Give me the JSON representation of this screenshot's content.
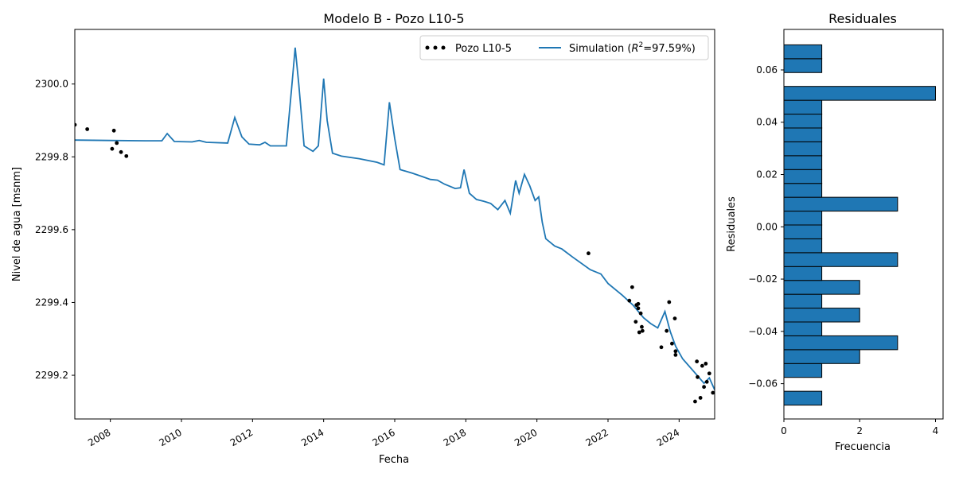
{
  "chart_data": [
    {
      "type": "line",
      "title": "Modelo B - Pozo L10-5",
      "xlabel": "Fecha",
      "ylabel": "Nivel de agua [msnm]",
      "xlim": [
        2007.0,
        2025.0
      ],
      "ylim": [
        2299.08,
        2300.15
      ],
      "x_ticks": [
        2008,
        2010,
        2012,
        2014,
        2016,
        2018,
        2020,
        2022,
        2024
      ],
      "y_ticks": [
        2299.2,
        2299.4,
        2299.6,
        2299.8,
        2300.0
      ],
      "y_tick_labels": [
        "2299.2",
        "2299.4",
        "2299.6",
        "2299.8",
        "2300.0"
      ],
      "grid": false,
      "legend_position": "top-right",
      "legend": {
        "observed": "Pozo L10-5",
        "simulated_prefix": "Simulation (",
        "simulated_r2": "R",
        "simulated_sup": "2",
        "simulated_suffix": "=97.59%)"
      },
      "colors": {
        "simulation": "#1f77b4",
        "observed": "#000000"
      },
      "series": [
        {
          "name": "Pozo L10-5",
          "kind": "scatter",
          "points": [
            [
              2007.0,
              2299.888
            ],
            [
              2007.35,
              2299.876
            ],
            [
              2008.05,
              2299.822
            ],
            [
              2008.1,
              2299.872
            ],
            [
              2008.18,
              2299.838
            ],
            [
              2008.3,
              2299.813
            ],
            [
              2008.45,
              2299.802
            ],
            [
              2021.45,
              2299.535
            ],
            [
              2022.6,
              2299.405
            ],
            [
              2022.68,
              2299.442
            ],
            [
              2022.78,
              2299.347
            ],
            [
              2022.8,
              2299.393
            ],
            [
              2022.85,
              2299.396
            ],
            [
              2022.85,
              2299.384
            ],
            [
              2022.88,
              2299.318
            ],
            [
              2022.92,
              2299.37
            ],
            [
              2022.95,
              2299.333
            ],
            [
              2022.97,
              2299.322
            ],
            [
              2023.5,
              2299.277
            ],
            [
              2023.65,
              2299.322
            ],
            [
              2023.72,
              2299.401
            ],
            [
              2023.8,
              2299.287
            ],
            [
              2023.88,
              2299.356
            ],
            [
              2023.9,
              2299.266
            ],
            [
              2023.9,
              2299.256
            ],
            [
              2024.45,
              2299.128
            ],
            [
              2024.5,
              2299.238
            ],
            [
              2024.52,
              2299.195
            ],
            [
              2024.6,
              2299.138
            ],
            [
              2024.65,
              2299.226
            ],
            [
              2024.7,
              2299.168
            ],
            [
              2024.75,
              2299.232
            ],
            [
              2024.78,
              2299.182
            ],
            [
              2024.85,
              2299.205
            ],
            [
              2024.95,
              2299.152
            ]
          ]
        },
        {
          "name": "Simulation (R2=97.59%)",
          "kind": "line",
          "points": [
            [
              2007.0,
              2299.846
            ],
            [
              2008.0,
              2299.845
            ],
            [
              2009.0,
              2299.844
            ],
            [
              2009.45,
              2299.844
            ],
            [
              2009.6,
              2299.864
            ],
            [
              2009.8,
              2299.842
            ],
            [
              2010.3,
              2299.841
            ],
            [
              2010.5,
              2299.845
            ],
            [
              2010.7,
              2299.84
            ],
            [
              2011.3,
              2299.838
            ],
            [
              2011.5,
              2299.908
            ],
            [
              2011.7,
              2299.855
            ],
            [
              2011.9,
              2299.835
            ],
            [
              2012.2,
              2299.833
            ],
            [
              2012.35,
              2299.84
            ],
            [
              2012.5,
              2299.83
            ],
            [
              2012.7,
              2299.83
            ],
            [
              2012.95,
              2299.83
            ],
            [
              2013.1,
              2299.99
            ],
            [
              2013.2,
              2300.1
            ],
            [
              2013.3,
              2300.0
            ],
            [
              2013.45,
              2299.83
            ],
            [
              2013.7,
              2299.815
            ],
            [
              2013.85,
              2299.83
            ],
            [
              2014.0,
              2300.015
            ],
            [
              2014.1,
              2299.9
            ],
            [
              2014.25,
              2299.81
            ],
            [
              2014.5,
              2299.802
            ],
            [
              2015.0,
              2299.795
            ],
            [
              2015.5,
              2299.785
            ],
            [
              2015.7,
              2299.778
            ],
            [
              2015.85,
              2299.95
            ],
            [
              2016.0,
              2299.85
            ],
            [
              2016.15,
              2299.765
            ],
            [
              2016.5,
              2299.755
            ],
            [
              2016.8,
              2299.745
            ],
            [
              2017.0,
              2299.738
            ],
            [
              2017.2,
              2299.736
            ],
            [
              2017.4,
              2299.725
            ],
            [
              2017.7,
              2299.713
            ],
            [
              2017.85,
              2299.715
            ],
            [
              2017.95,
              2299.765
            ],
            [
              2018.1,
              2299.7
            ],
            [
              2018.3,
              2299.683
            ],
            [
              2018.5,
              2299.678
            ],
            [
              2018.7,
              2299.672
            ],
            [
              2018.9,
              2299.655
            ],
            [
              2019.1,
              2299.68
            ],
            [
              2019.25,
              2299.645
            ],
            [
              2019.4,
              2299.735
            ],
            [
              2019.5,
              2299.7
            ],
            [
              2019.65,
              2299.752
            ],
            [
              2019.8,
              2299.72
            ],
            [
              2019.95,
              2299.68
            ],
            [
              2020.05,
              2299.69
            ],
            [
              2020.15,
              2299.62
            ],
            [
              2020.25,
              2299.575
            ],
            [
              2020.5,
              2299.555
            ],
            [
              2020.7,
              2299.547
            ],
            [
              2021.0,
              2299.525
            ],
            [
              2021.5,
              2299.49
            ],
            [
              2021.8,
              2299.478
            ],
            [
              2022.0,
              2299.452
            ],
            [
              2022.4,
              2299.42
            ],
            [
              2022.7,
              2299.393
            ],
            [
              2023.0,
              2299.358
            ],
            [
              2023.2,
              2299.342
            ],
            [
              2023.4,
              2299.33
            ],
            [
              2023.6,
              2299.375
            ],
            [
              2023.75,
              2299.32
            ],
            [
              2023.9,
              2299.28
            ],
            [
              2024.1,
              2299.245
            ],
            [
              2024.4,
              2299.212
            ],
            [
              2024.7,
              2299.178
            ],
            [
              2024.85,
              2299.193
            ],
            [
              2025.0,
              2299.16
            ]
          ]
        }
      ]
    },
    {
      "type": "bar",
      "orientation": "horizontal",
      "title": "Residuales",
      "xlabel": "Frecuencia",
      "ylabel": "Residuales",
      "xlim": [
        0,
        4.2
      ],
      "ylim": [
        -0.0735,
        0.0755
      ],
      "x_ticks": [
        0,
        2,
        4
      ],
      "y_ticks": [
        -0.06,
        -0.04,
        -0.02,
        0.0,
        0.02,
        0.04,
        0.06
      ],
      "y_tick_labels": [
        "−0.06",
        "−0.04",
        "−0.02",
        "0.00",
        "0.02",
        "0.04",
        "0.06"
      ],
      "grid": false,
      "color": "#1f77b4",
      "bins": [
        {
          "lo": -0.0682,
          "hi": -0.0629,
          "count": 1
        },
        {
          "lo": -0.0576,
          "hi": -0.0523,
          "count": 1
        },
        {
          "lo": -0.0523,
          "hi": -0.047,
          "count": 2
        },
        {
          "lo": -0.047,
          "hi": -0.0417,
          "count": 3
        },
        {
          "lo": -0.0417,
          "hi": -0.0364,
          "count": 1
        },
        {
          "lo": -0.0364,
          "hi": -0.0311,
          "count": 2
        },
        {
          "lo": -0.0311,
          "hi": -0.0258,
          "count": 1
        },
        {
          "lo": -0.0258,
          "hi": -0.0205,
          "count": 2
        },
        {
          "lo": -0.0205,
          "hi": -0.0152,
          "count": 1
        },
        {
          "lo": -0.0152,
          "hi": -0.0099,
          "count": 3
        },
        {
          "lo": -0.0099,
          "hi": -0.0046,
          "count": 1
        },
        {
          "lo": -0.0046,
          "hi": 0.0007,
          "count": 1
        },
        {
          "lo": 0.0007,
          "hi": 0.006,
          "count": 1
        },
        {
          "lo": 0.006,
          "hi": 0.0113,
          "count": 3
        },
        {
          "lo": 0.0113,
          "hi": 0.0166,
          "count": 1
        },
        {
          "lo": 0.0166,
          "hi": 0.0219,
          "count": 1
        },
        {
          "lo": 0.0219,
          "hi": 0.0272,
          "count": 1
        },
        {
          "lo": 0.0272,
          "hi": 0.0325,
          "count": 1
        },
        {
          "lo": 0.0325,
          "hi": 0.0378,
          "count": 1
        },
        {
          "lo": 0.0378,
          "hi": 0.0431,
          "count": 1
        },
        {
          "lo": 0.0431,
          "hi": 0.0484,
          "count": 1
        },
        {
          "lo": 0.0484,
          "hi": 0.0537,
          "count": 4
        },
        {
          "lo": 0.059,
          "hi": 0.0643,
          "count": 1
        },
        {
          "lo": 0.0643,
          "hi": 0.0696,
          "count": 1
        }
      ]
    }
  ]
}
